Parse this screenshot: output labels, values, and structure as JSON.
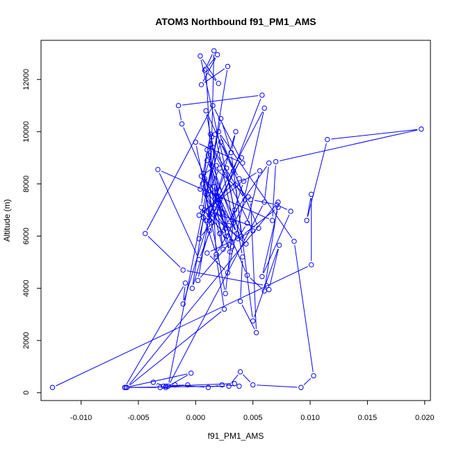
{
  "chart_data": {
    "type": "line",
    "title": "ATOM3 Northbound f91_PM1_AMS",
    "xlabel": "f91_PM1_AMS",
    "ylabel": "Altitude (m)",
    "xlim": [
      -0.0135,
      0.0205
    ],
    "ylim": [
      -300,
      13500
    ],
    "xticks": [
      -0.01,
      -0.005,
      0.0,
      0.005,
      0.01,
      0.015,
      0.02
    ],
    "xtick_labels": [
      "-0.010",
      "-0.005",
      "0.000",
      "0.005",
      "0.010",
      "0.015",
      "0.020"
    ],
    "yticks": [
      0,
      2000,
      4000,
      6000,
      8000,
      10000,
      12000
    ],
    "ytick_labels": [
      "0",
      "2000",
      "4000",
      "6000",
      "8000",
      "10000",
      "12000"
    ],
    "grid": false,
    "colors": {
      "series": "#0000ff",
      "axes": "#000000"
    },
    "series": [
      {
        "marker": "open-circle",
        "x": [
          -0.0125,
          0.0101,
          0.0101,
          0.0097,
          0.0115,
          0.0197,
          0.007,
          0.0067,
          -0.0033,
          0.0003,
          0.0058,
          -0.0015,
          -0.0012,
          0.0045,
          0.006,
          0.0072,
          -0.006,
          0.0025,
          0.0018,
          0.0009,
          0.0019,
          0.0005,
          0.0028,
          -0.0003,
          0.0012,
          0.0016,
          0.0008,
          0.002,
          0.0004,
          0.0034,
          0.0026,
          0.0,
          0.0041,
          0.0015,
          -0.0044,
          -0.0011,
          0.0062,
          0.0064,
          0.0073,
          0.005,
          0.0031,
          0.0022,
          -0.0024,
          0.006,
          0.0064,
          0.0021,
          0.0031,
          0.0002,
          0.0012,
          0.0027,
          0.0041,
          0.0039,
          0.0053,
          0.0048,
          0.0071,
          0.0083,
          0.0058,
          0.0072,
          0.004,
          0.0035,
          0.0056,
          0.0045,
          0.0037,
          0.0016,
          0.0009,
          0.006,
          0.0028,
          0.001,
          0.005,
          0.0013,
          0.0043,
          0.002,
          0.0086,
          0.0103,
          0.0092,
          0.005,
          0.0039,
          0.0029,
          -0.0061,
          -0.0004,
          -0.0026,
          -0.0007,
          -0.0028,
          -0.0018,
          0.0011,
          0.0023,
          0.0038,
          0.0034,
          -0.0026,
          -0.0037,
          -0.0031,
          -0.0062,
          -0.0009,
          -0.0011,
          0.0035,
          0.0031,
          0.0021,
          0.001,
          0.0007,
          0.0003,
          0.0014,
          0.0022,
          0.0005,
          0.0018,
          0.0013,
          0.0004,
          0.0026,
          0.0017,
          0.0008,
          0.0024,
          0.0032,
          0.0011,
          0.0019,
          0.003,
          0.0006,
          0.0015,
          0.0009,
          0.0033,
          0.0055,
          0.0008,
          0.0044,
          0.001,
          0.0014,
          0.002,
          0.0029,
          0.0042,
          0.0003,
          0.0021,
          0.004,
          0.0012,
          0.0007,
          0.0024,
          0.0016,
          0.0036,
          0.001,
          0.0005,
          0.0027,
          0.0014,
          0.0046,
          0.0018,
          0.0006,
          0.0038,
          0.0022,
          0.0009,
          0.0033,
          0.0017
        ],
        "y": [
          200,
          4900,
          7600,
          6600,
          9700,
          10100,
          8850,
          6600,
          8550,
          5100,
          11400,
          11000,
          10300,
          4500,
          3900,
          7300,
          200,
          3200,
          5200,
          12400,
          12950,
          11800,
          12500,
          4000,
          6200,
          13100,
          12350,
          11850,
          12900,
          7000,
          3800,
          9600,
          8800,
          11000,
          6100,
          4700,
          4100,
          3950,
          5650,
          2750,
          9200,
          10500,
          250,
          7300,
          8800,
          6100,
          5800,
          4300,
          6800,
          8600,
          5200,
          3500,
          2300,
          7400,
          7200,
          6950,
          4450,
          7100,
          6000,
          7950,
          8500,
          6500,
          5900,
          7050,
          6600,
          10900,
          4600,
          5350,
          6200,
          9500,
          7400,
          10000,
          5800,
          650,
          200,
          300,
          800,
          250,
          200,
          750,
          200,
          300,
          250,
          300,
          200,
          300,
          250,
          350,
          250,
          400,
          200,
          200,
          4200,
          3400,
          10000,
          9200,
          8600,
          7600,
          6700,
          5900,
          6500,
          7200,
          8300,
          8700,
          9900,
          7800,
          6300,
          7700,
          8200,
          6900,
          5600,
          9100,
          7300,
          5400,
          8000,
          9400,
          10800,
          8500,
          6300,
          7000,
          5700,
          8900,
          9800,
          7500,
          6400,
          8100,
          6800,
          7400,
          9000,
          6600,
          8400,
          5500,
          7900,
          6100,
          9300,
          7100,
          6000,
          8700,
          7500,
          5300,
          6900,
          8200,
          9600,
          7700,
          6500,
          9900
        ]
      }
    ]
  }
}
